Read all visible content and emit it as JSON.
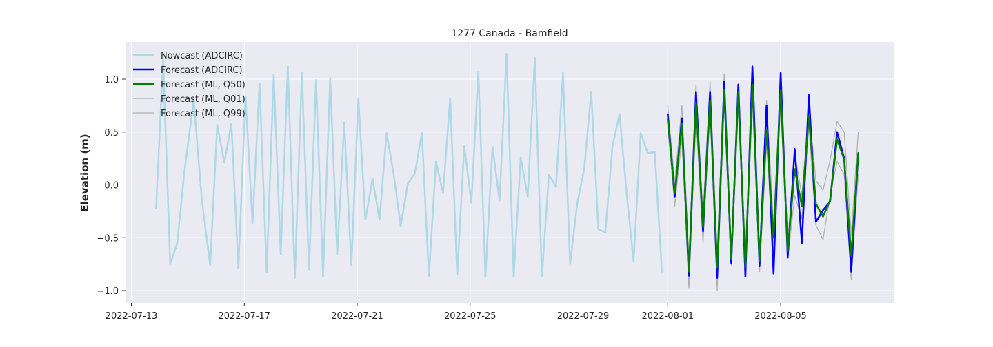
{
  "chart_data": {
    "type": "line",
    "title": "1277 Canada - Bamfield",
    "xlabel": "",
    "ylabel": "Elevation (m)",
    "xlim": [
      "2022-07-12",
      "2022-08-09"
    ],
    "ylim": [
      -1.12,
      1.35
    ],
    "x_ticks": [
      "2022-07-13",
      "2022-07-17",
      "2022-07-21",
      "2022-07-25",
      "2022-07-29",
      "2022-08-01",
      "2022-08-05"
    ],
    "y_ticks": [
      -1.0,
      -0.5,
      0.0,
      0.5,
      1.0
    ],
    "y_tick_labels": [
      "−1.0",
      "−0.5",
      "0.0",
      "0.5",
      "1.0"
    ],
    "grid": true,
    "legend_position": "top-left",
    "colors": {
      "plot_background": "#eaeaf2",
      "grid": "#ffffff",
      "nowcast": "#add8e6",
      "forecast_adcirc": "#0000ff",
      "forecast_q50": "#008000",
      "forecast_q01": "#b0b0b0",
      "forecast_q99": "#b0b0b0"
    },
    "series": [
      {
        "name": "Nowcast (ADCIRC)",
        "color_key": "nowcast",
        "width": 2.5,
        "x": [
          "2022-07-13T21:00",
          "2022-07-14T03:00",
          "2022-07-14T09:00",
          "2022-07-14T15:00",
          "2022-07-14T21:00",
          "2022-07-15T05:00",
          "2022-07-15T12:00",
          "2022-07-15T19:00",
          "2022-07-16T01:00",
          "2022-07-16T07:00",
          "2022-07-16T13:00",
          "2022-07-16T19:00",
          "2022-07-17T01:00",
          "2022-07-17T07:00",
          "2022-07-17T13:00",
          "2022-07-17T19:00",
          "2022-07-18T01:00",
          "2022-07-18T07:00",
          "2022-07-18T13:00",
          "2022-07-18T19:00",
          "2022-07-19T01:00",
          "2022-07-19T07:00",
          "2022-07-19T13:00",
          "2022-07-19T19:00",
          "2022-07-20T01:00",
          "2022-07-20T07:00",
          "2022-07-20T13:00",
          "2022-07-20T19:00",
          "2022-07-21T01:00",
          "2022-07-21T07:00",
          "2022-07-21T13:00",
          "2022-07-21T19:00",
          "2022-07-22T01:00",
          "2022-07-22T07:00",
          "2022-07-22T13:00",
          "2022-07-22T19:00",
          "2022-07-23T01:00",
          "2022-07-23T07:00",
          "2022-07-23T13:00",
          "2022-07-23T19:00",
          "2022-07-24T01:00",
          "2022-07-24T07:00",
          "2022-07-24T13:00",
          "2022-07-24T19:00",
          "2022-07-25T01:00",
          "2022-07-25T07:00",
          "2022-07-25T13:00",
          "2022-07-25T19:00",
          "2022-07-26T01:00",
          "2022-07-26T07:00",
          "2022-07-26T13:00",
          "2022-07-26T19:00",
          "2022-07-27T01:00",
          "2022-07-27T07:00",
          "2022-07-27T13:00",
          "2022-07-27T19:00",
          "2022-07-28T01:00",
          "2022-07-28T07:00",
          "2022-07-28T13:00",
          "2022-07-28T19:00",
          "2022-07-29T01:00",
          "2022-07-29T07:00",
          "2022-07-29T13:00",
          "2022-07-29T19:00",
          "2022-07-30T01:00",
          "2022-07-30T07:00",
          "2022-07-30T13:00",
          "2022-07-30T19:00",
          "2022-07-31T01:00",
          "2022-07-31T07:00",
          "2022-07-31T13:00",
          "2022-07-31T19:00"
        ],
        "y": [
          -0.22,
          1.18,
          -0.75,
          -0.55,
          0.12,
          0.8,
          -0.15,
          -0.76,
          0.57,
          0.21,
          0.58,
          -0.79,
          0.84,
          -0.36,
          0.96,
          -0.83,
          1.04,
          -0.66,
          1.12,
          -0.88,
          1.06,
          -0.8,
          0.99,
          -0.87,
          1.01,
          -0.66,
          0.59,
          -0.76,
          0.82,
          -0.33,
          0.06,
          -0.33,
          0.49,
          0.1,
          -0.39,
          0.01,
          0.11,
          0.49,
          -0.86,
          0.22,
          -0.08,
          0.82,
          -0.85,
          0.37,
          -0.17,
          1.07,
          -0.87,
          0.36,
          -0.15,
          1.24,
          -0.87,
          0.26,
          -0.11,
          1.2,
          -0.87,
          0.1,
          -0.02,
          1.06,
          -0.75,
          -0.18,
          0.15,
          0.88,
          -0.42,
          -0.45,
          0.36,
          0.67,
          -0.07,
          -0.72,
          0.49,
          0.3,
          0.31,
          -0.82
        ]
      },
      {
        "name": "Forecast (ADCIRC)",
        "color_key": "forecast_adcirc",
        "width": 2.5,
        "x": [
          "2022-08-01T00:00",
          "2022-08-01T06:00",
          "2022-08-01T12:00",
          "2022-08-01T18:00",
          "2022-08-02T00:00",
          "2022-08-02T06:00",
          "2022-08-02T12:00",
          "2022-08-02T18:00",
          "2022-08-03T00:00",
          "2022-08-03T06:00",
          "2022-08-03T12:00",
          "2022-08-03T18:00",
          "2022-08-04T00:00",
          "2022-08-04T06:00",
          "2022-08-04T12:00",
          "2022-08-04T18:00",
          "2022-08-05T00:00",
          "2022-08-05T06:00",
          "2022-08-05T12:00",
          "2022-08-05T18:00",
          "2022-08-06T00:00",
          "2022-08-06T06:00",
          "2022-08-06T12:00",
          "2022-08-06T18:00",
          "2022-08-07T00:00",
          "2022-08-07T06:00",
          "2022-08-07T12:00",
          "2022-08-07T18:00"
        ],
        "y": [
          0.67,
          -0.11,
          0.63,
          -0.86,
          0.88,
          -0.44,
          0.88,
          -0.88,
          0.98,
          -0.74,
          0.95,
          -0.87,
          1.12,
          -0.77,
          0.75,
          -0.84,
          1.06,
          -0.69,
          0.34,
          -0.55,
          0.85,
          -0.35,
          -0.24,
          -0.16,
          0.5,
          0.25,
          -0.82,
          0.3
        ]
      },
      {
        "name": "Forecast (ML, Q50)",
        "color_key": "forecast_q50",
        "width": 2.5,
        "x": [
          "2022-08-01T00:00",
          "2022-08-01T06:00",
          "2022-08-01T12:00",
          "2022-08-01T18:00",
          "2022-08-02T00:00",
          "2022-08-02T06:00",
          "2022-08-02T12:00",
          "2022-08-02T18:00",
          "2022-08-03T00:00",
          "2022-08-03T06:00",
          "2022-08-03T12:00",
          "2022-08-03T18:00",
          "2022-08-04T00:00",
          "2022-08-04T06:00",
          "2022-08-04T12:00",
          "2022-08-04T18:00",
          "2022-08-05T00:00",
          "2022-08-05T06:00",
          "2022-08-05T12:00",
          "2022-08-05T18:00",
          "2022-08-06T00:00",
          "2022-08-06T06:00",
          "2022-08-06T12:00",
          "2022-08-06T18:00",
          "2022-08-07T00:00",
          "2022-08-07T06:00",
          "2022-08-07T12:00",
          "2022-08-07T18:00"
        ],
        "y": [
          0.62,
          -0.08,
          0.58,
          -0.82,
          0.78,
          -0.4,
          0.8,
          -0.78,
          0.9,
          -0.7,
          0.88,
          -0.78,
          0.95,
          -0.72,
          0.52,
          -0.5,
          0.9,
          -0.63,
          0.15,
          -0.2,
          0.65,
          -0.18,
          -0.3,
          -0.15,
          0.43,
          0.24,
          -0.67,
          0.3
        ]
      },
      {
        "name": "Forecast (ML, Q01)",
        "color_key": "forecast_q01",
        "width": 1.3,
        "x": [
          "2022-08-01T00:00",
          "2022-08-01T06:00",
          "2022-08-01T12:00",
          "2022-08-01T18:00",
          "2022-08-02T00:00",
          "2022-08-02T06:00",
          "2022-08-02T12:00",
          "2022-08-02T18:00",
          "2022-08-03T00:00",
          "2022-08-03T06:00",
          "2022-08-03T12:00",
          "2022-08-03T18:00",
          "2022-08-04T00:00",
          "2022-08-04T06:00",
          "2022-08-04T12:00",
          "2022-08-04T18:00",
          "2022-08-05T00:00",
          "2022-08-05T06:00",
          "2022-08-05T12:00",
          "2022-08-05T18:00",
          "2022-08-06T00:00",
          "2022-08-06T06:00",
          "2022-08-06T12:00",
          "2022-08-06T18:00",
          "2022-08-07T00:00",
          "2022-08-07T06:00",
          "2022-08-07T12:00",
          "2022-08-07T18:00"
        ],
        "y": [
          0.55,
          -0.2,
          0.45,
          -0.98,
          0.65,
          -0.55,
          0.7,
          -1.0,
          0.8,
          -0.76,
          0.75,
          -0.86,
          0.85,
          -0.82,
          0.38,
          -0.6,
          0.78,
          -0.7,
          -0.1,
          -0.32,
          0.55,
          -0.38,
          -0.52,
          -0.1,
          0.22,
          0.1,
          -0.9,
          0.1
        ]
      },
      {
        "name": "Forecast (ML, Q99)",
        "color_key": "forecast_q99",
        "width": 1.3,
        "x": [
          "2022-08-01T00:00",
          "2022-08-01T06:00",
          "2022-08-01T12:00",
          "2022-08-01T18:00",
          "2022-08-02T00:00",
          "2022-08-02T06:00",
          "2022-08-02T12:00",
          "2022-08-02T18:00",
          "2022-08-03T00:00",
          "2022-08-03T06:00",
          "2022-08-03T12:00",
          "2022-08-03T18:00",
          "2022-08-04T00:00",
          "2022-08-04T06:00",
          "2022-08-04T12:00",
          "2022-08-04T18:00",
          "2022-08-05T00:00",
          "2022-08-05T06:00",
          "2022-08-05T12:00",
          "2022-08-05T18:00",
          "2022-08-06T00:00",
          "2022-08-06T06:00",
          "2022-08-06T12:00",
          "2022-08-06T18:00",
          "2022-08-07T00:00",
          "2022-08-07T06:00",
          "2022-08-07T12:00",
          "2022-08-07T18:00"
        ],
        "y": [
          0.75,
          0.02,
          0.75,
          -0.7,
          0.95,
          -0.28,
          0.98,
          -0.68,
          1.05,
          -0.63,
          0.93,
          -0.7,
          1.0,
          -0.62,
          0.8,
          -0.38,
          0.98,
          -0.55,
          0.3,
          -0.1,
          0.72,
          0.04,
          -0.05,
          0.23,
          0.6,
          0.5,
          -0.48,
          0.5
        ]
      }
    ]
  }
}
